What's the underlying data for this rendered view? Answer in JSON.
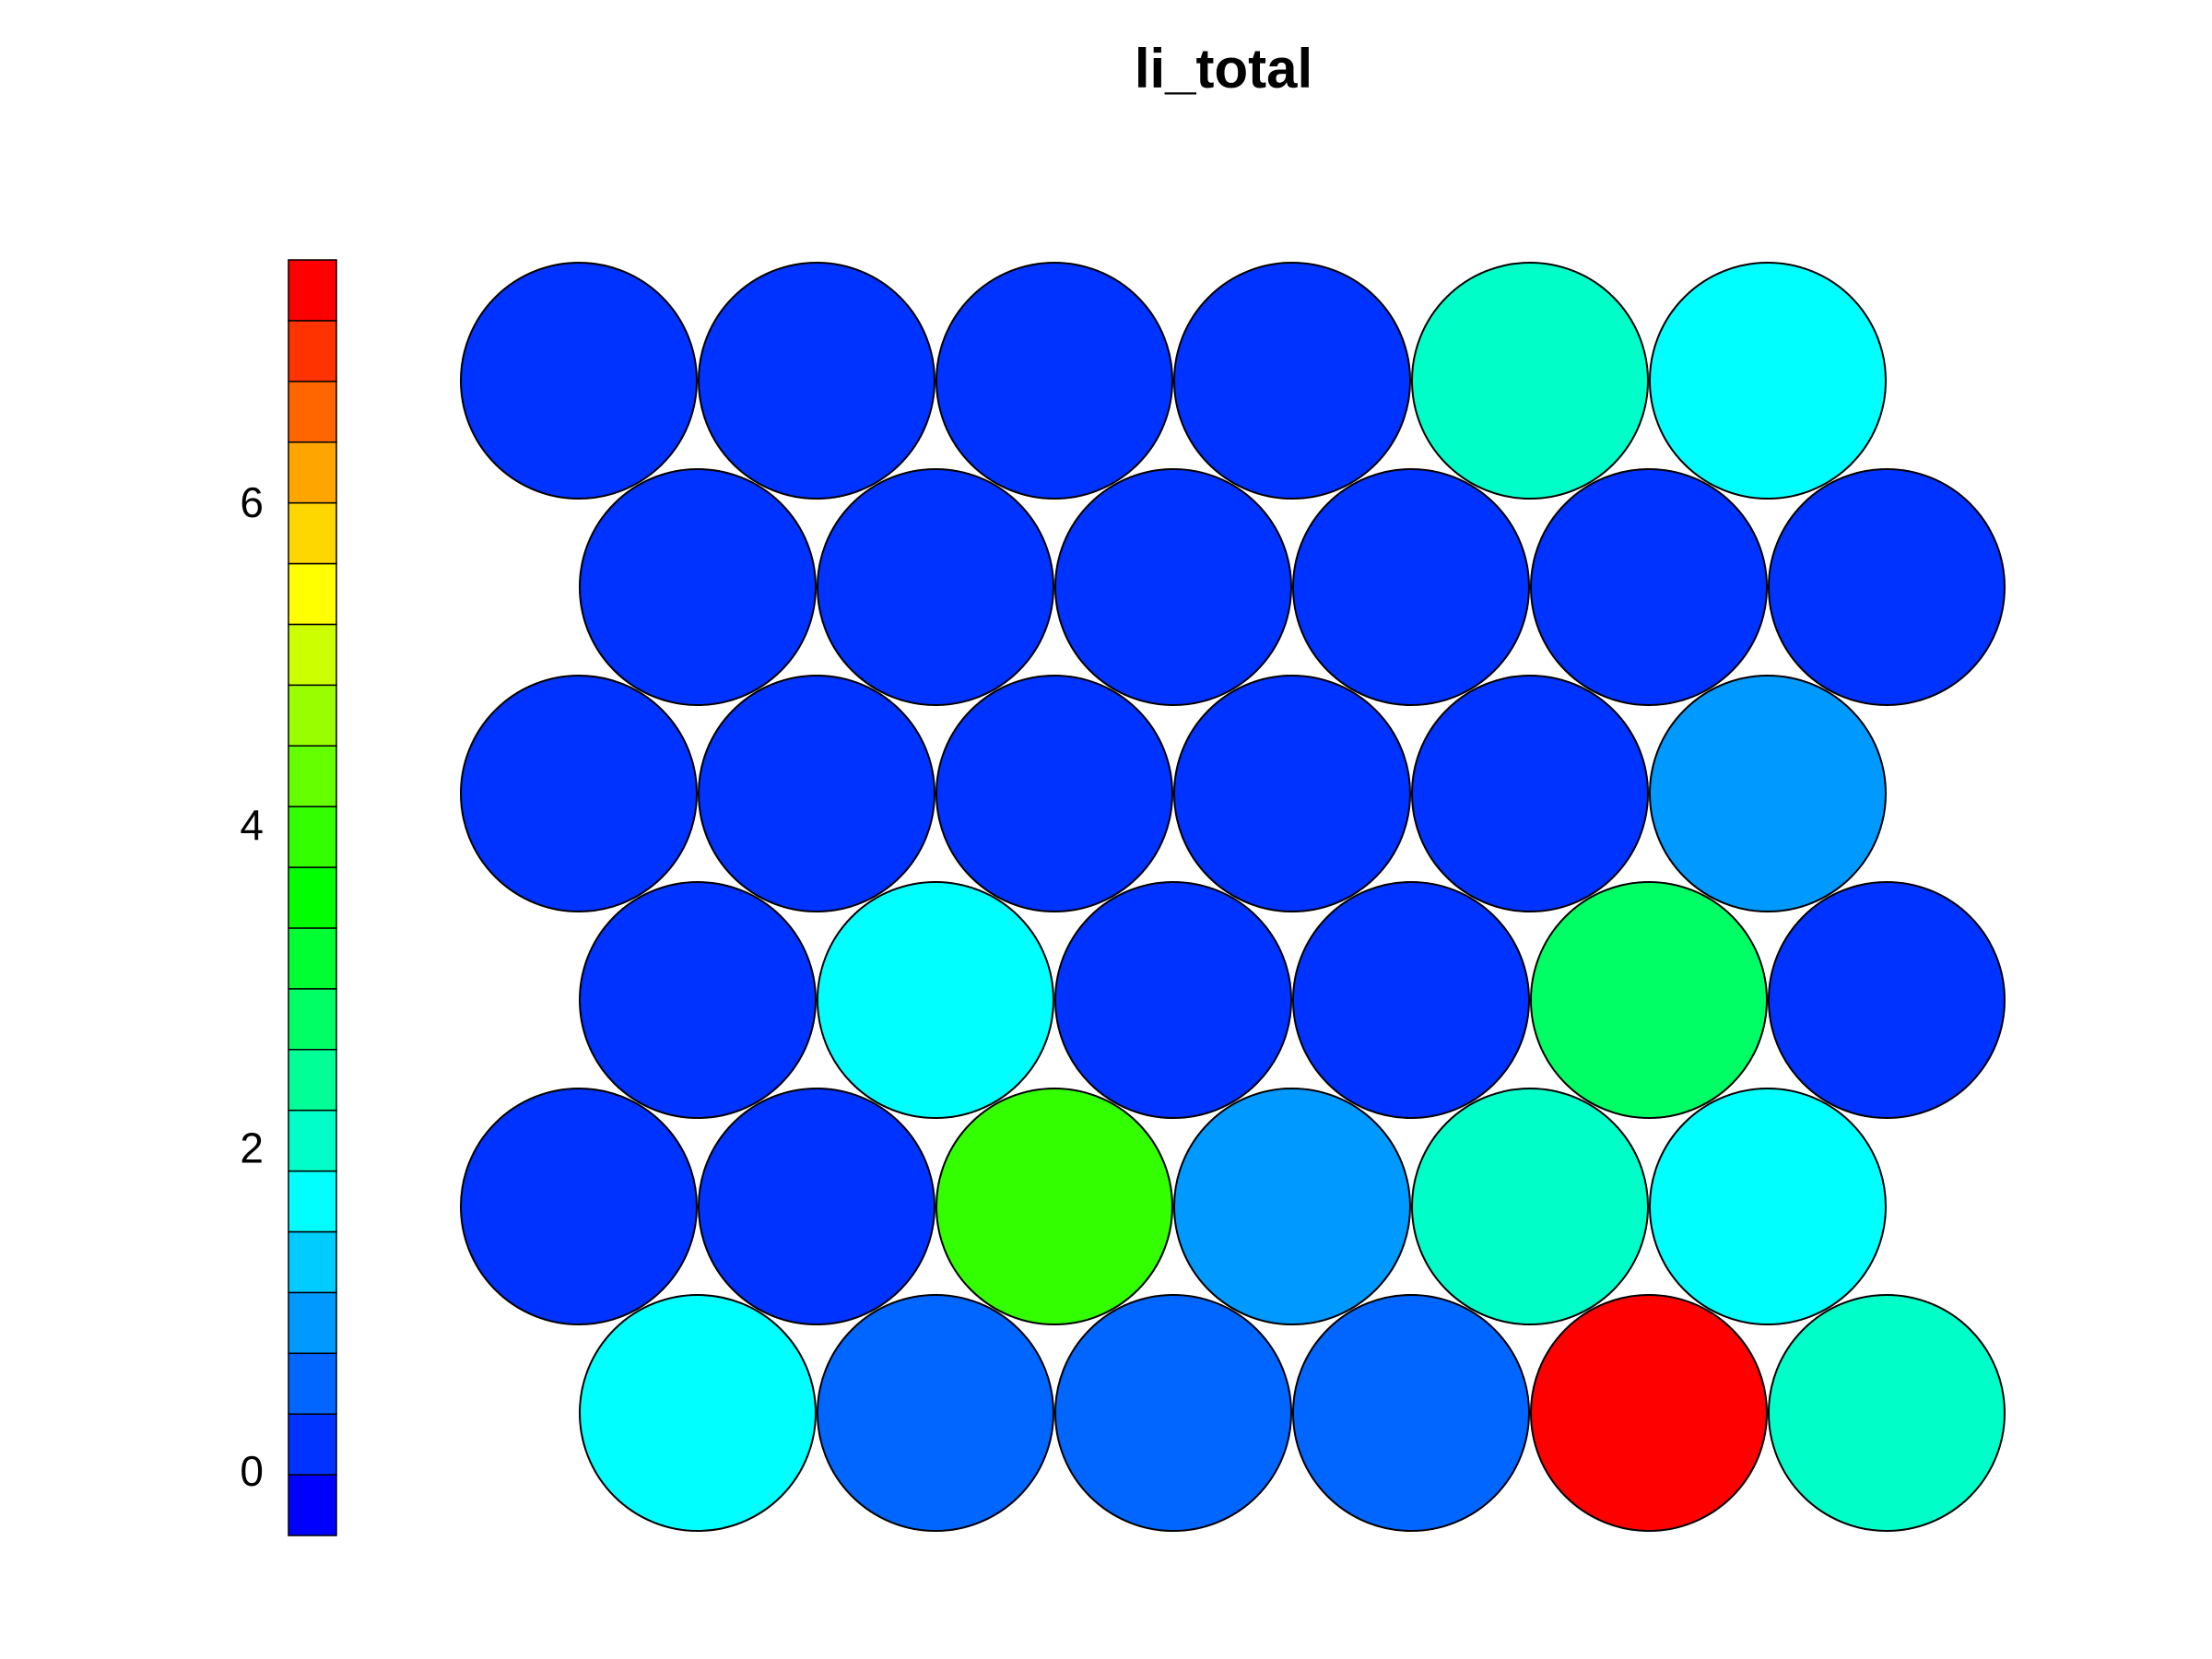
{
  "chart_data": {
    "type": "heatmap",
    "title": "li_total",
    "subtype": "self-organizing-map hexagonal grid",
    "grid": {
      "rows": 6,
      "cols": 6
    },
    "colorbar": {
      "ticks": [
        0,
        2,
        4,
        6
      ],
      "range": [
        -0.4,
        7.5
      ],
      "colors": [
        "#0000ff",
        "#0033ff",
        "#0066ff",
        "#0099ff",
        "#00ccff",
        "#00ffff",
        "#00ffc8",
        "#00ff96",
        "#00ff64",
        "#00ff32",
        "#00ff00",
        "#33ff00",
        "#66ff00",
        "#99ff00",
        "#ccff00",
        "#ffff00",
        "#ffd700",
        "#ffa500",
        "#ff6600",
        "#ff3300",
        "#ff0000"
      ]
    },
    "rows": [
      {
        "row": 1,
        "values": [
          0.0,
          0.0,
          0.0,
          0.0,
          1.9,
          1.5
        ]
      },
      {
        "row": 2,
        "values": [
          0.0,
          0.0,
          0.0,
          0.0,
          0.0,
          0.3
        ]
      },
      {
        "row": 3,
        "values": [
          0.0,
          0.0,
          0.3,
          0.3,
          0.3,
          1.1
        ]
      },
      {
        "row": 4,
        "values": [
          0.0,
          1.5,
          0.3,
          0.3,
          2.7,
          0.0
        ]
      },
      {
        "row": 5,
        "values": [
          0.3,
          0.3,
          3.9,
          1.1,
          1.9,
          1.5
        ]
      },
      {
        "row": 6,
        "values": [
          1.5,
          0.7,
          0.7,
          0.7,
          7.2,
          1.9
        ]
      }
    ]
  }
}
